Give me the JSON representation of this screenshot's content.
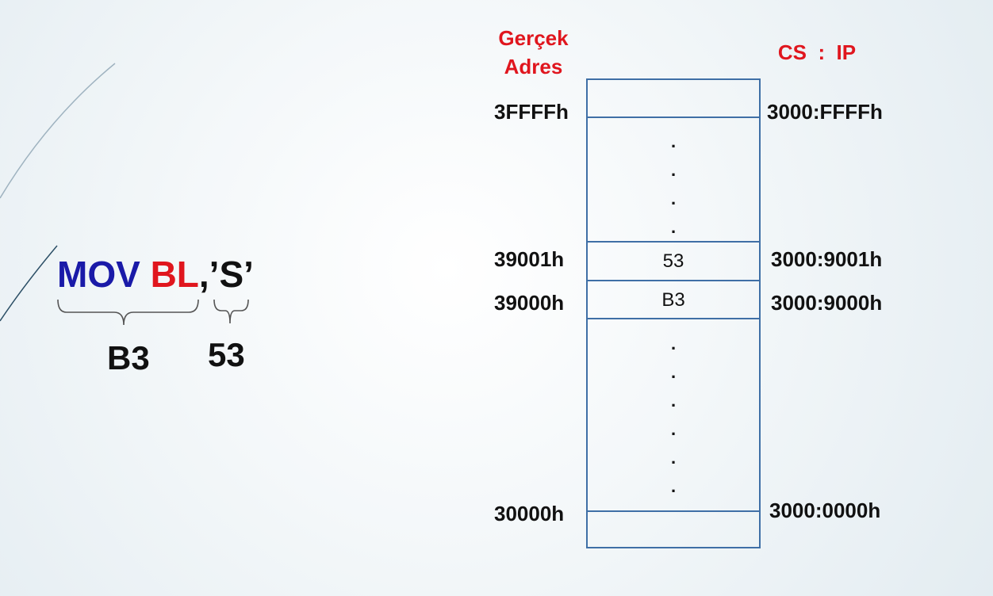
{
  "instruction": {
    "opcode": "MOV",
    "register": "BL",
    "separator": ",",
    "operand": "’S’",
    "opcode_code": "B3",
    "operand_code": "53",
    "colors": {
      "opcode": "#1a1aa8",
      "register": "#e0161e",
      "operand": "#111111"
    }
  },
  "memory": {
    "header_physical": "Gerçek\nAdres",
    "header_logical": "CS  :  IP",
    "rows": [
      {
        "physical": "3FFFFh",
        "logical": "3000:FFFFh",
        "value": ""
      },
      {
        "physical": "39001h",
        "logical": "3000:9001h",
        "value": "53"
      },
      {
        "physical": "39000h",
        "logical": "3000:9000h",
        "value": "B3"
      },
      {
        "physical": "30000h",
        "logical": "3000:0000h",
        "value": ""
      }
    ],
    "ellipsis_dot": ".",
    "colors": {
      "border": "#3f6fa6",
      "header": "#e0161e"
    }
  }
}
